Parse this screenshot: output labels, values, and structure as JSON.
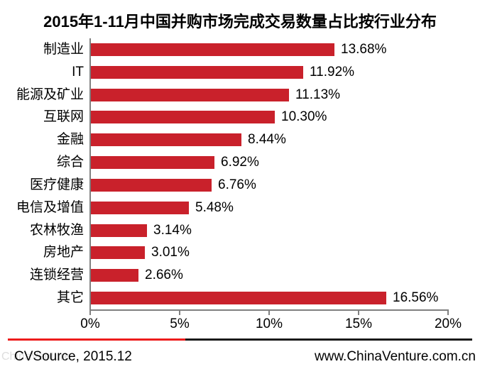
{
  "title": "2015年1-11月中国并购市场完成交易数量占比按行业分布",
  "chart_data": {
    "type": "bar",
    "orientation": "horizontal",
    "title": "2015年1-11月中国并购市场完成交易数量占比按行业分布",
    "categories": [
      "制造业",
      "IT",
      "能源及矿业",
      "互联网",
      "金融",
      "综合",
      "医疗健康",
      "电信及增值",
      "农林牧渔",
      "房地产",
      "连锁经营",
      "其它"
    ],
    "values": [
      13.68,
      11.92,
      11.13,
      10.3,
      8.44,
      6.92,
      6.76,
      5.48,
      3.14,
      3.01,
      2.66,
      16.56
    ],
    "value_labels": [
      "13.68%",
      "11.92%",
      "11.13%",
      "10.30%",
      "8.44%",
      "6.92%",
      "6.76%",
      "5.48%",
      "3.14%",
      "3.01%",
      "2.66%",
      "16.56%"
    ],
    "x_ticks": [
      "0%",
      "5%",
      "10%",
      "15%",
      "20%"
    ],
    "xlim": [
      0,
      20
    ],
    "grid": false,
    "legend": false,
    "bar_color": "#C9212B",
    "axis_color": "#808080",
    "label_color": "#000000"
  },
  "footer": {
    "source": "CVSource, 2015.12",
    "website": "www.ChinaVenture.com.cn",
    "watermark": "ChinaVenture",
    "divider_red": "#ED1C1C",
    "divider_black": "#1A1A1A"
  }
}
